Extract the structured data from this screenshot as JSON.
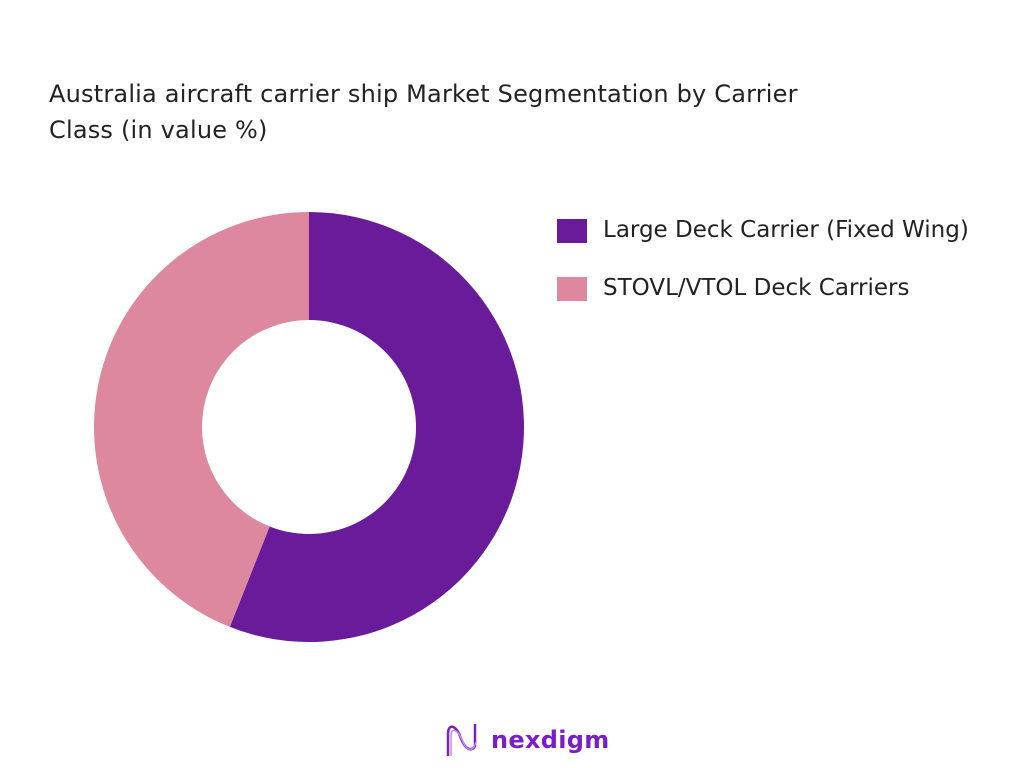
{
  "chart_data": {
    "type": "pie",
    "donut": true,
    "title": "Australia aircraft carrier ship Market Segmentation by Carrier Class (in value %)",
    "categories": [
      "Large Deck Carrier (Fixed Wing)",
      "STOVL/VTOL Deck Carriers"
    ],
    "values": [
      56,
      44
    ],
    "unit": "%",
    "colors": [
      "#6a1b9a",
      "#dd889e"
    ],
    "start_angle": "top, clockwise",
    "legend_position": "right"
  },
  "brand": {
    "name": "nexdigm",
    "color": "#7a1fc4"
  }
}
